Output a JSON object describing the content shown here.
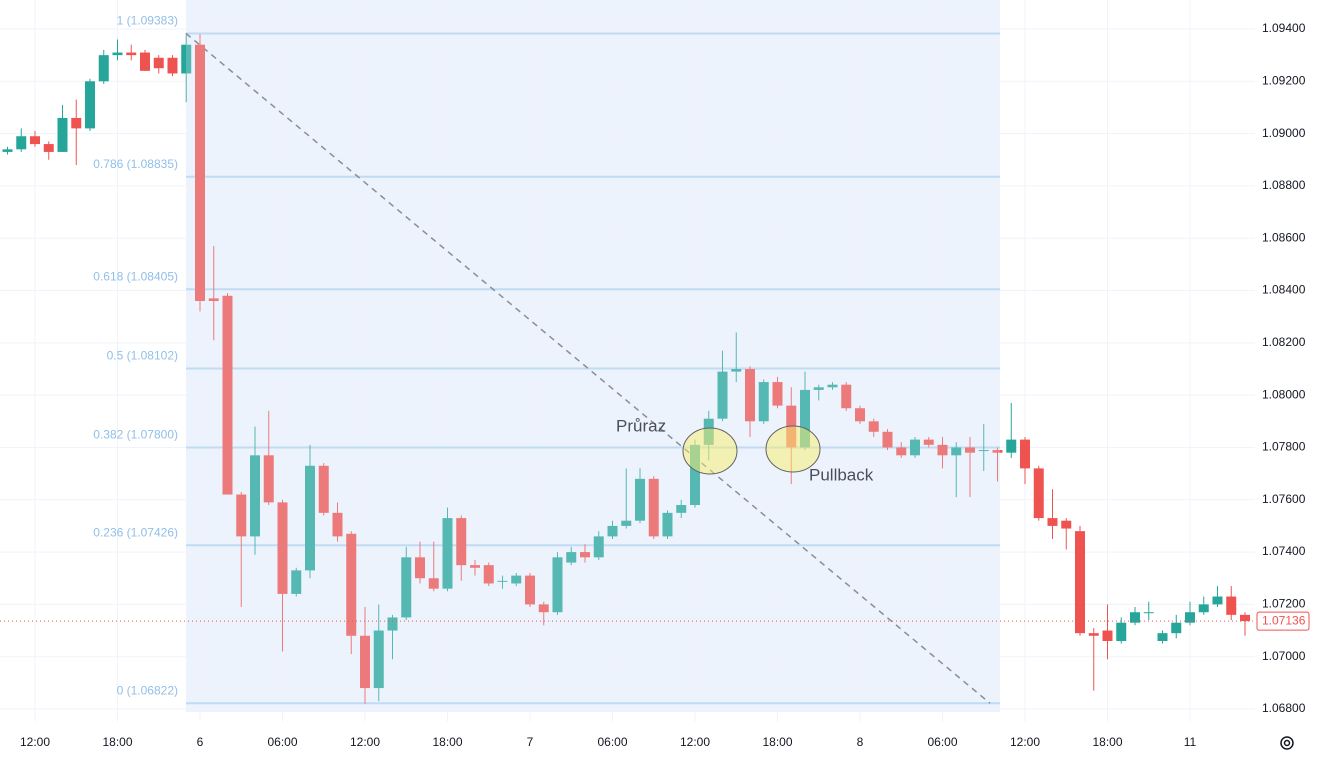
{
  "chart_data": {
    "type": "candlestick",
    "categories": [
      null,
      null,
      "12:00",
      null,
      null,
      null,
      null,
      null,
      "18:00",
      null,
      null,
      null,
      null,
      null,
      "6",
      null,
      null,
      null,
      null,
      null,
      "06:00",
      null,
      null,
      null,
      null,
      null,
      "12:00",
      null,
      null,
      null,
      null,
      null,
      "18:00",
      null,
      null,
      null,
      null,
      null,
      "7",
      null,
      null,
      null,
      null,
      null,
      "06:00",
      null,
      null,
      null,
      null,
      null,
      "12:00",
      null,
      null,
      null,
      null,
      null,
      "18:00",
      null,
      null,
      null,
      null,
      null,
      "8",
      null,
      null,
      null,
      null,
      null,
      "06:00",
      null,
      null,
      null,
      null,
      null,
      "12:00",
      null,
      null,
      null,
      null,
      null,
      "18:00",
      null,
      null,
      null,
      null,
      null,
      "11",
      null,
      null,
      null,
      null
    ],
    "open": [
      1.0893,
      1.0894,
      1.0899,
      1.0896,
      1.0893,
      1.0906,
      1.0902,
      1.092,
      1.093,
      1.0931,
      1.0931,
      1.0929,
      1.0929,
      1.0923,
      1.0934,
      1.0837,
      1.0838,
      1.0762,
      1.0746,
      1.0777,
      1.0759,
      1.0724,
      1.0733,
      1.0773,
      1.0755,
      1.0747,
      1.0708,
      1.0688,
      1.071,
      1.0715,
      1.0738,
      1.073,
      1.0726,
      1.0753,
      1.0735,
      1.0735,
      1.0729,
      1.0728,
      1.0731,
      1.072,
      1.0717,
      1.0736,
      1.074,
      1.0738,
      1.0746,
      1.075,
      1.0752,
      1.0768,
      1.0746,
      1.0755,
      1.0758,
      1.0781,
      1.0791,
      1.0809,
      1.081,
      1.079,
      1.0805,
      1.0796,
      1.078,
      1.0802,
      1.0803,
      1.0804,
      1.0795,
      1.079,
      1.0786,
      1.078,
      1.0777,
      1.0783,
      1.0781,
      1.0777,
      1.078,
      1.0779,
      1.0779,
      1.0778,
      1.0783,
      1.0772,
      1.0753,
      1.0752,
      1.0748,
      1.0709,
      1.071,
      1.0706,
      1.0713,
      1.0717,
      1.0706,
      1.0709,
      1.0713,
      1.0717,
      1.072,
      1.0723,
      1.0716
    ],
    "high": [
      1.0895,
      1.0902,
      1.0901,
      1.0897,
      1.0911,
      1.0913,
      1.0921,
      1.0932,
      1.0936,
      1.0934,
      1.0932,
      1.093,
      1.093,
      1.0938,
      1.0938,
      1.0857,
      1.0839,
      1.0763,
      1.0788,
      1.0794,
      1.076,
      1.0734,
      1.0781,
      1.0774,
      1.0759,
      1.0748,
      1.0719,
      1.072,
      1.0716,
      1.0742,
      1.0744,
      1.0744,
      1.0757,
      1.0754,
      1.0737,
      1.0736,
      1.0731,
      1.0732,
      1.0732,
      1.0721,
      1.074,
      1.0742,
      1.0743,
      1.0748,
      1.0752,
      1.0772,
      1.0772,
      1.0769,
      1.0756,
      1.076,
      1.0783,
      1.0794,
      1.0817,
      1.0824,
      1.0811,
      1.0806,
      1.0807,
      1.0803,
      1.0809,
      1.0804,
      1.0805,
      1.0805,
      1.0796,
      1.0791,
      1.0787,
      1.0782,
      1.0784,
      1.0784,
      1.0784,
      1.0782,
      1.0784,
      1.0789,
      1.078,
      1.0797,
      1.0784,
      1.0773,
      1.0764,
      1.0753,
      1.075,
      1.0711,
      1.072,
      1.0715,
      1.0719,
      1.0721,
      1.071,
      1.0716,
      1.0721,
      1.0723,
      1.0727,
      1.0727,
      1.0717
    ],
    "low": [
      1.0892,
      1.0893,
      1.0895,
      1.089,
      1.0893,
      1.0888,
      1.0901,
      1.0919,
      1.0928,
      1.0928,
      1.0924,
      1.0923,
      1.0922,
      1.0912,
      1.0832,
      1.0821,
      1.0762,
      1.0719,
      1.0739,
      1.0758,
      1.0702,
      1.0723,
      1.073,
      1.0754,
      1.0744,
      1.0701,
      1.0682,
      1.0683,
      1.0699,
      1.0714,
      1.0728,
      1.0725,
      1.0725,
      1.0729,
      1.0731,
      1.0727,
      1.0726,
      1.0727,
      1.0719,
      1.0712,
      1.0716,
      1.0735,
      1.0736,
      1.0737,
      1.0745,
      1.0749,
      1.0751,
      1.0745,
      1.0745,
      1.0753,
      1.0757,
      1.0775,
      1.079,
      1.0805,
      1.0784,
      1.0789,
      1.0795,
      1.0766,
      1.0779,
      1.0798,
      1.0802,
      1.0794,
      1.0789,
      1.0784,
      1.0779,
      1.0776,
      1.0776,
      1.078,
      1.0772,
      1.0761,
      1.0761,
      1.0771,
      1.0767,
      1.0776,
      1.0766,
      1.0752,
      1.0745,
      1.0741,
      1.0708,
      1.0687,
      1.0699,
      1.0705,
      1.0712,
      1.0714,
      1.0705,
      1.0707,
      1.0712,
      1.0716,
      1.0719,
      1.0714,
      1.0708
    ],
    "close": [
      1.0894,
      1.0899,
      1.0896,
      1.0893,
      1.0906,
      1.0902,
      1.092,
      1.093,
      1.0931,
      1.093,
      1.0924,
      1.0925,
      1.0923,
      1.0934,
      1.0836,
      1.0836,
      1.0762,
      1.0746,
      1.0777,
      1.0759,
      1.0724,
      1.0733,
      1.0773,
      1.0755,
      1.0746,
      1.0708,
      1.0688,
      1.071,
      1.0715,
      1.0738,
      1.073,
      1.0726,
      1.0753,
      1.0735,
      1.0734,
      1.0728,
      1.0729,
      1.0731,
      1.072,
      1.0717,
      1.0738,
      1.074,
      1.0738,
      1.0746,
      1.075,
      1.0752,
      1.0768,
      1.0746,
      1.0755,
      1.0758,
      1.0781,
      1.0791,
      1.0809,
      1.081,
      1.079,
      1.0805,
      1.0796,
      1.078,
      1.0802,
      1.0803,
      1.0804,
      1.0795,
      1.079,
      1.0786,
      1.078,
      1.0777,
      1.0783,
      1.0781,
      1.0777,
      1.078,
      1.0778,
      1.0779,
      1.0778,
      1.0783,
      1.0772,
      1.0753,
      1.075,
      1.0749,
      1.0709,
      1.0708,
      1.0706,
      1.0713,
      1.0717,
      1.0717,
      1.0709,
      1.0713,
      1.0717,
      1.072,
      1.0723,
      1.0716,
      1.07136
    ],
    "up_color": "#26a69a",
    "down_color": "#ef5350",
    "ylim": [
      1.068,
      1.094
    ],
    "yticks": [
      {
        "value": 1.068,
        "label": "1.06800"
      },
      {
        "value": 1.07,
        "label": "1.07000"
      },
      {
        "value": 1.072,
        "label": "1.07200"
      },
      {
        "value": 1.074,
        "label": "1.07400"
      },
      {
        "value": 1.076,
        "label": "1.07600"
      },
      {
        "value": 1.078,
        "label": "1.07800"
      },
      {
        "value": 1.08,
        "label": "1.08000"
      },
      {
        "value": 1.082,
        "label": "1.08200"
      },
      {
        "value": 1.084,
        "label": "1.08400"
      },
      {
        "value": 1.086,
        "label": "1.08600"
      },
      {
        "value": 1.088,
        "label": "1.08800"
      },
      {
        "value": 1.09,
        "label": "1.09000"
      },
      {
        "value": 1.092,
        "label": "1.09200"
      },
      {
        "value": 1.094,
        "label": "1.09400"
      }
    ],
    "grid": true,
    "last_price": {
      "value": 1.07136,
      "label": "1.07136"
    },
    "fib_levels": [
      {
        "value": 1.09383,
        "label": "1 (1.09383)"
      },
      {
        "value": 1.08835,
        "label": "0.786 (1.08835)"
      },
      {
        "value": 1.08405,
        "label": "0.618 (1.08405)"
      },
      {
        "value": 1.08102,
        "label": "0.5 (1.08102)"
      },
      {
        "value": 1.078,
        "label": "0.382 (1.07800)"
      },
      {
        "value": 1.07426,
        "label": "0.236 (1.07426)"
      },
      {
        "value": 1.06822,
        "label": "0 (1.06822)"
      }
    ],
    "fib_color": "#b3d4f0",
    "annotations": [
      "Průraz",
      "Pullback"
    ]
  }
}
